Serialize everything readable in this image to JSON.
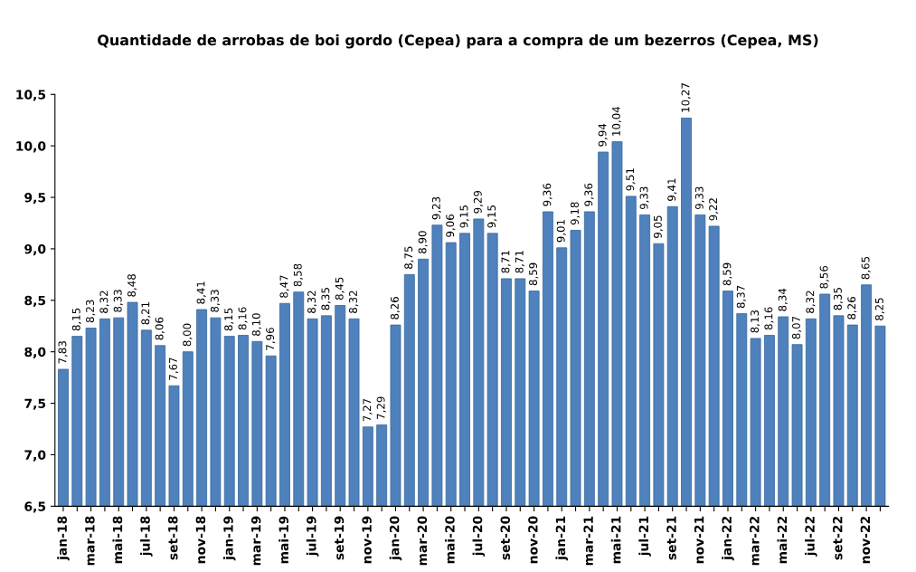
{
  "chart_data": {
    "type": "bar",
    "title": "Quantidade de arrobas de boi gordo (Cepea) para a compra de um bezerros (Cepea, MS)",
    "categories": [
      "jan-18",
      null,
      "mar-18",
      null,
      "mai-18",
      null,
      "jul-18",
      null,
      "set-18",
      null,
      "nov-18",
      null,
      "jan-19",
      null,
      "mar-19",
      null,
      "mai-19",
      null,
      "jul-19",
      null,
      "set-19",
      null,
      "nov-19",
      null,
      "jan-20",
      null,
      "mar-20",
      null,
      "mai-20",
      null,
      "jul-20",
      null,
      "set-20",
      null,
      "nov-20",
      null,
      "jan-21",
      null,
      "mar-21",
      null,
      "mai-21",
      null,
      "jul-21",
      null,
      "set-21",
      null,
      "nov-21",
      null,
      "jan-22",
      null,
      "mar-22",
      null,
      "mai-22",
      null,
      "jul-22",
      null,
      "set-22",
      null,
      "nov-22",
      null
    ],
    "values": [
      7.83,
      8.15,
      8.23,
      8.32,
      8.33,
      8.48,
      8.21,
      8.06,
      7.67,
      8.0,
      8.41,
      8.33,
      8.15,
      8.16,
      8.1,
      7.96,
      8.47,
      8.58,
      8.32,
      8.35,
      8.45,
      8.32,
      7.27,
      7.29,
      8.26,
      8.75,
      8.9,
      9.23,
      9.06,
      9.15,
      9.29,
      9.15,
      8.71,
      8.71,
      8.59,
      9.36,
      9.01,
      9.18,
      9.36,
      9.94,
      10.04,
      9.51,
      9.33,
      9.05,
      9.41,
      10.27,
      9.33,
      9.22,
      8.59,
      8.37,
      8.13,
      8.16,
      8.34,
      8.07,
      8.32,
      8.56,
      8.35,
      8.26,
      8.65,
      8.25
    ],
    "value_labels": [
      "7,83",
      "8,15",
      "8,23",
      "8,32",
      "8,33",
      "8,48",
      "8,21",
      "8,06",
      "7,67",
      "8,00",
      "8,41",
      "8,33",
      "8,15",
      "8,16",
      "8,10",
      "7,96",
      "8,47",
      "8,58",
      "8,32",
      "8,35",
      "8,45",
      "8,32",
      "7,27",
      "7,29",
      "8,26",
      "8,75",
      "8,90",
      "9,23",
      "9,06",
      "9,15",
      "9,29",
      "9,15",
      "8,71",
      "8,71",
      "8,59",
      "9,36",
      "9,01",
      "9,18",
      "9,36",
      "9,94",
      "10,04",
      "9,51",
      "9,33",
      "9,05",
      "9,41",
      "10,27",
      "9,33",
      "9,22",
      "8,59",
      "8,37",
      "8,13",
      "8,16",
      "8,34",
      "8,07",
      "8,32",
      "8,56",
      "8,35",
      "8,26",
      "8,65",
      "8,25"
    ],
    "color": "#4f81bd",
    "ylim": [
      6.5,
      10.5
    ],
    "yticks": [
      {
        "value": 6.5,
        "label": "6,5"
      },
      {
        "value": 7.0,
        "label": "7,0"
      },
      {
        "value": 7.5,
        "label": "7,5"
      },
      {
        "value": 8.0,
        "label": "8,0"
      },
      {
        "value": 8.5,
        "label": "8,5"
      },
      {
        "value": 9.0,
        "label": "9,0"
      },
      {
        "value": 9.5,
        "label": "9,5"
      },
      {
        "value": 10.0,
        "label": "10,0"
      },
      {
        "value": 10.5,
        "label": "10,5"
      }
    ],
    "grid": false
  }
}
